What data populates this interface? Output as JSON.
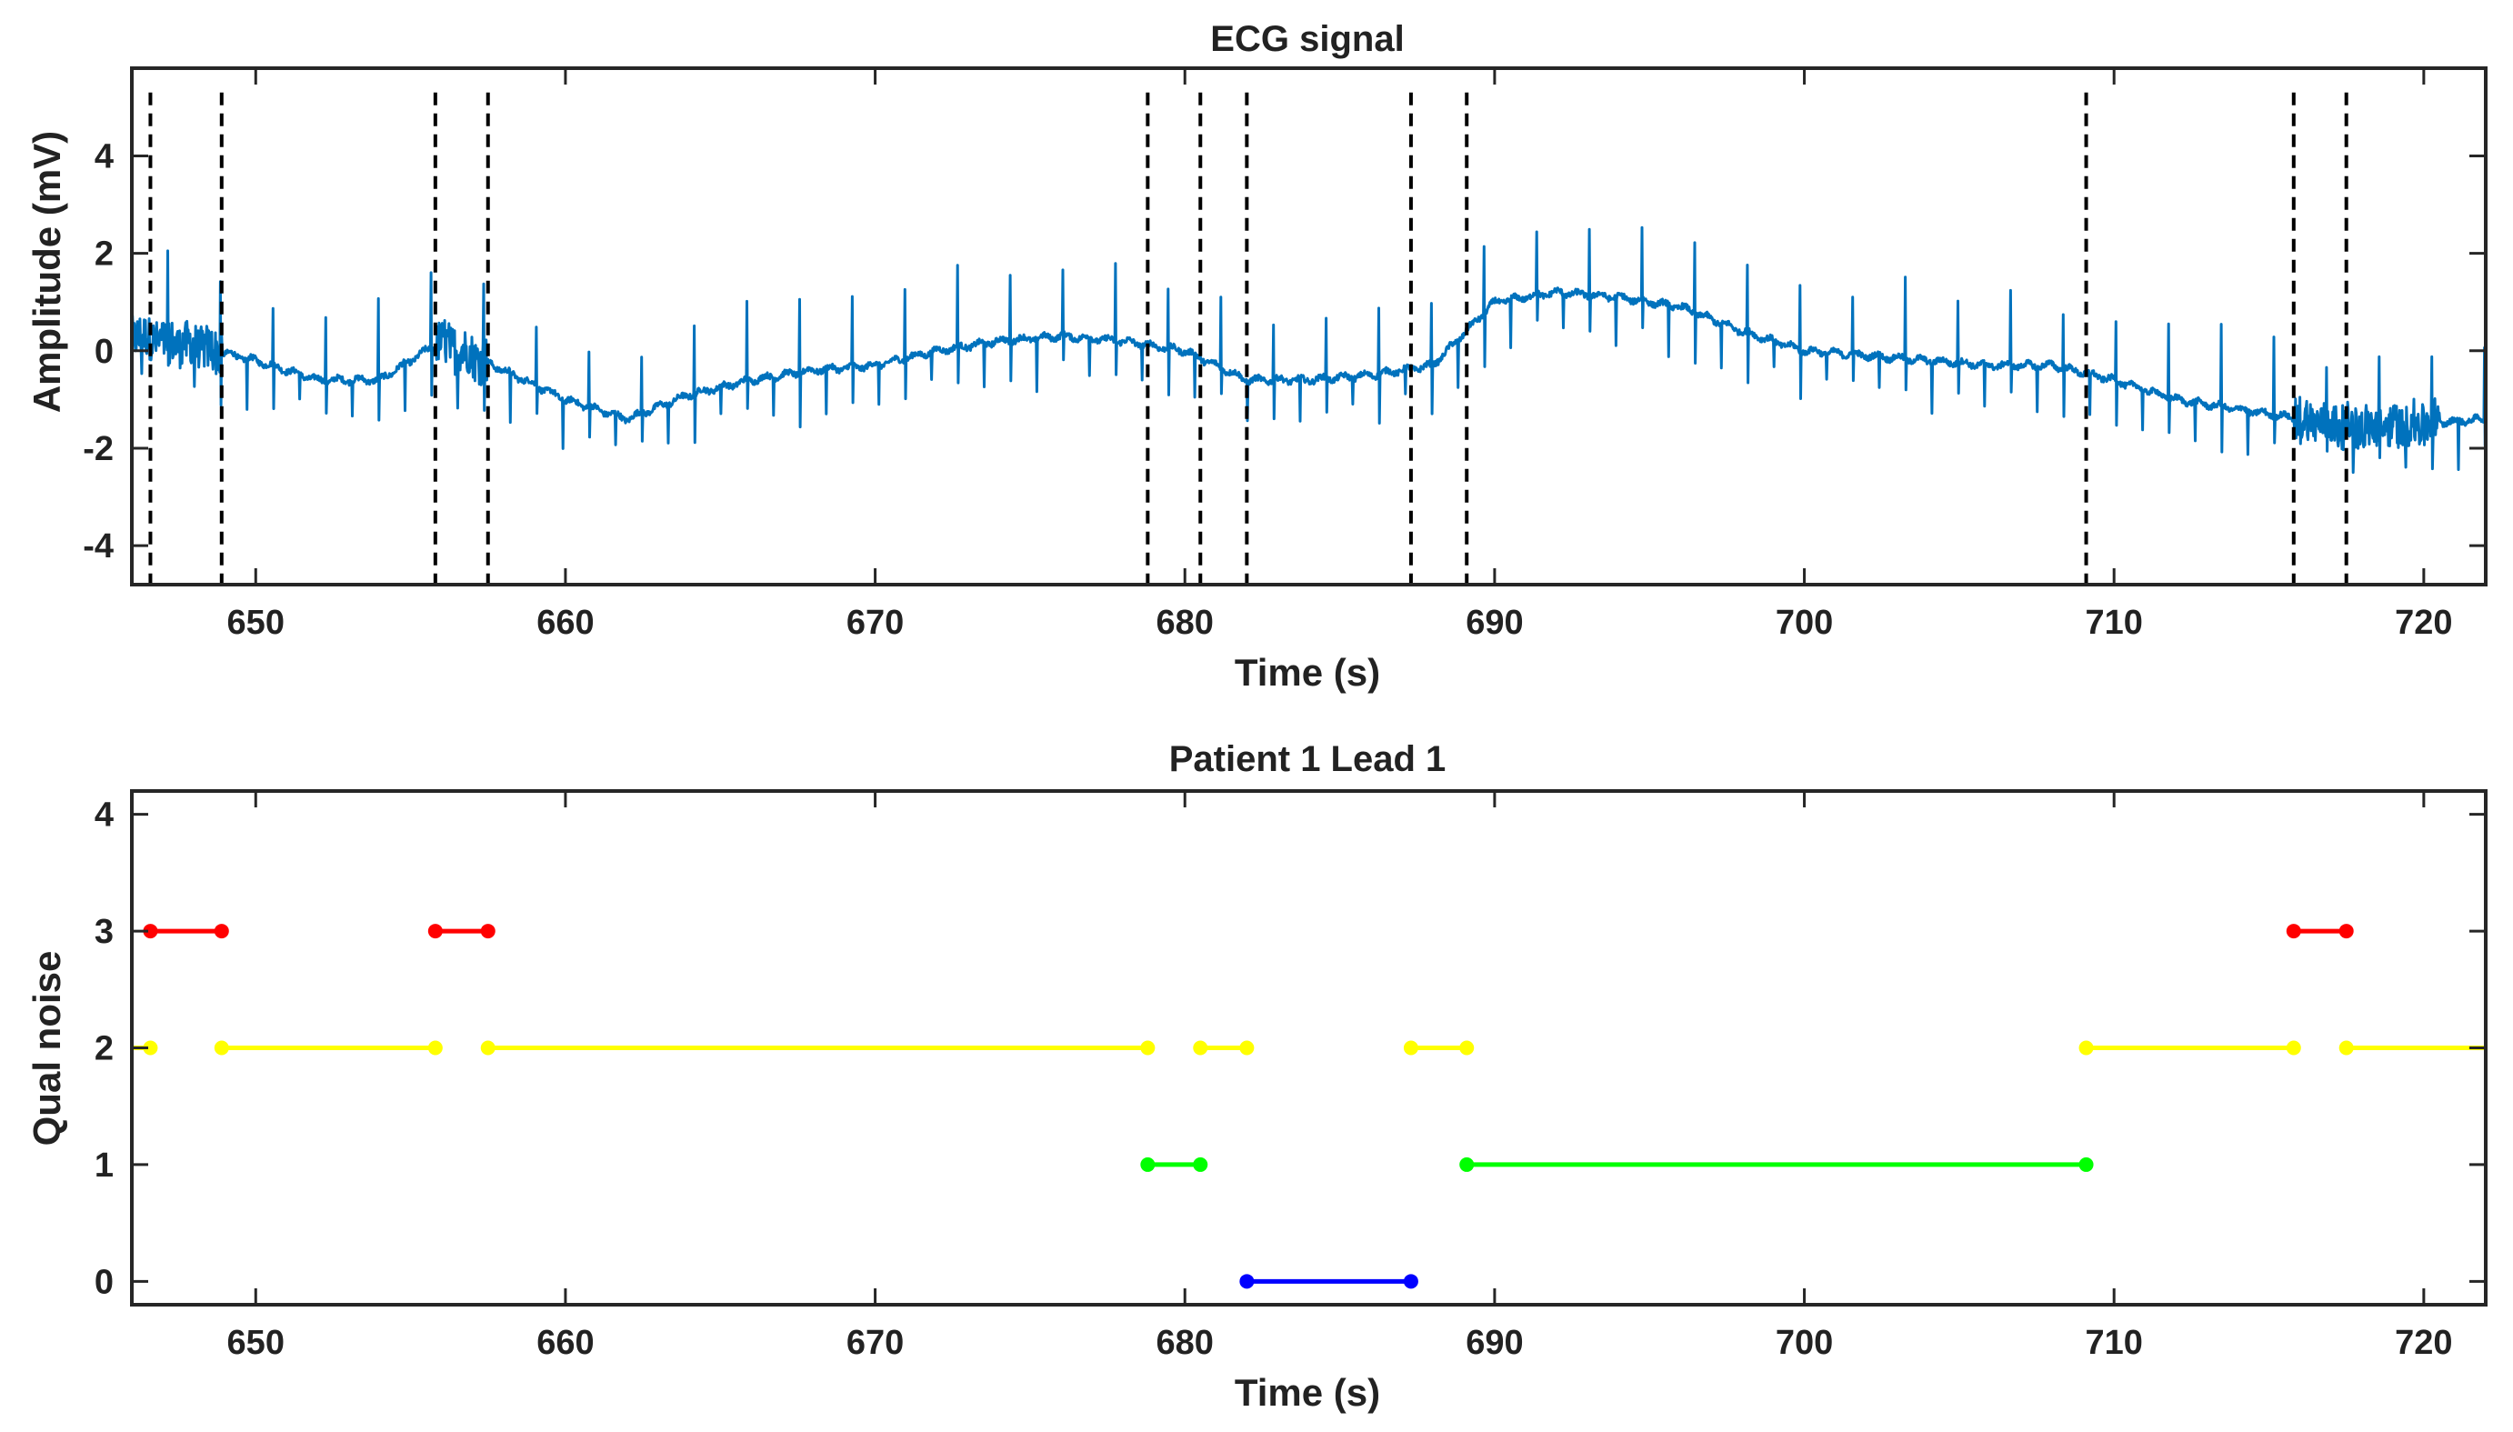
{
  "chart_data": [
    {
      "type": "line",
      "title": "ECG signal",
      "xlabel": "Time (s)",
      "ylabel": "Amplitude (mV)",
      "xlim": [
        646,
        722
      ],
      "ylim": [
        -4.8,
        5.8
      ],
      "xticks": [
        650,
        660,
        670,
        680,
        690,
        700,
        710,
        720
      ],
      "xtick_labels": [
        "650",
        "660",
        "670",
        "680",
        "690",
        "700",
        "710",
        "720"
      ],
      "yticks": [
        -4,
        -2,
        0,
        2,
        4
      ],
      "ytick_labels": [
        "-4",
        "-2",
        "0",
        "2",
        "4"
      ],
      "series_color": "#0072BD",
      "marker_line_color": "#000000",
      "baseline": {
        "x": [
          646,
          648,
          650,
          652,
          654,
          656,
          658,
          660,
          662,
          664,
          666,
          668,
          670,
          672,
          674,
          676,
          678,
          680,
          682,
          684,
          686,
          688,
          690,
          692,
          694,
          696,
          698,
          700,
          702,
          704,
          706,
          708,
          710,
          712,
          714,
          716,
          718,
          720,
          722
        ],
        "y": [
          0.3,
          0.1,
          -0.2,
          -0.6,
          -0.6,
          0.2,
          -0.4,
          -1.0,
          -1.4,
          -0.9,
          -0.6,
          -0.4,
          -0.3,
          0.0,
          0.2,
          0.3,
          0.2,
          0.0,
          -0.6,
          -0.6,
          -0.5,
          -0.3,
          1.0,
          1.2,
          1.1,
          0.9,
          0.4,
          0.0,
          -0.1,
          -0.2,
          -0.3,
          -0.3,
          -0.6,
          -1.0,
          -1.2,
          -1.4,
          -1.6,
          -1.5,
          -1.4
        ]
      },
      "beat_interval_s": 0.85,
      "vertical_markers": [
        646.6,
        648.9,
        655.8,
        657.5,
        678.8,
        680.5,
        682.0,
        687.3,
        689.1,
        709.1,
        715.8,
        717.5
      ]
    },
    {
      "type": "line",
      "title": "Patient 1 Lead 1",
      "xlabel": "Time (s)",
      "ylabel": "Qual noise",
      "xlim": [
        646,
        722
      ],
      "ylim": [
        -0.2,
        4.2
      ],
      "xticks": [
        650,
        660,
        670,
        680,
        690,
        700,
        710,
        720
      ],
      "xtick_labels": [
        "650",
        "660",
        "670",
        "680",
        "690",
        "700",
        "710",
        "720"
      ],
      "yticks": [
        0,
        1,
        2,
        3,
        4
      ],
      "ytick_labels": [
        "0",
        "1",
        "2",
        "3",
        "4"
      ],
      "segments": [
        {
          "level": 3,
          "x0": 646.6,
          "x1": 648.9,
          "color": "#FF0000",
          "dot_start": true,
          "dot_end": true
        },
        {
          "level": 3,
          "x0": 655.8,
          "x1": 657.5,
          "color": "#FF0000",
          "dot_start": true,
          "dot_end": true
        },
        {
          "level": 3,
          "x0": 715.8,
          "x1": 717.5,
          "color": "#FF0000",
          "dot_start": true,
          "dot_end": true
        },
        {
          "level": 2,
          "x0": 646.0,
          "x1": 646.6,
          "color": "#FFFF00",
          "dot_start": false,
          "dot_end": true
        },
        {
          "level": 2,
          "x0": 648.9,
          "x1": 655.8,
          "color": "#FFFF00",
          "dot_start": true,
          "dot_end": true
        },
        {
          "level": 2,
          "x0": 657.5,
          "x1": 678.8,
          "color": "#FFFF00",
          "dot_start": true,
          "dot_end": true
        },
        {
          "level": 2,
          "x0": 680.5,
          "x1": 682.0,
          "color": "#FFFF00",
          "dot_start": true,
          "dot_end": true
        },
        {
          "level": 2,
          "x0": 687.3,
          "x1": 689.1,
          "color": "#FFFF00",
          "dot_start": true,
          "dot_end": true
        },
        {
          "level": 2,
          "x0": 709.1,
          "x1": 715.8,
          "color": "#FFFF00",
          "dot_start": true,
          "dot_end": true
        },
        {
          "level": 2,
          "x0": 717.5,
          "x1": 722.0,
          "color": "#FFFF00",
          "dot_start": true,
          "dot_end": false
        },
        {
          "level": 1,
          "x0": 678.8,
          "x1": 680.5,
          "color": "#00FF00",
          "dot_start": true,
          "dot_end": true
        },
        {
          "level": 1,
          "x0": 689.1,
          "x1": 709.1,
          "color": "#00FF00",
          "dot_start": true,
          "dot_end": true
        },
        {
          "level": 0,
          "x0": 682.0,
          "x1": 687.3,
          "color": "#0000FF",
          "dot_start": true,
          "dot_end": true
        }
      ]
    }
  ]
}
